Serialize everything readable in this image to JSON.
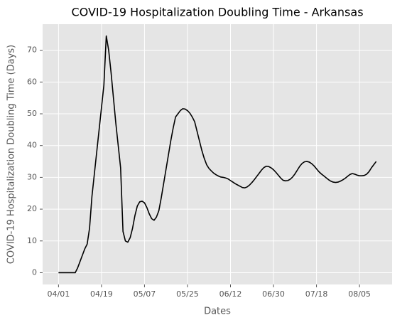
{
  "chart_data": {
    "type": "line",
    "title": "COVID-19 Hospitalization Doubling Time - Arkansas",
    "xlabel": "Dates",
    "ylabel": "COVID-19 Hospitalization Doubling Time (Days)",
    "categories": [
      "04/01",
      "04/02",
      "04/03",
      "04/04",
      "04/05",
      "04/06",
      "04/07",
      "04/08",
      "04/09",
      "04/10",
      "04/11",
      "04/12",
      "04/13",
      "04/14",
      "04/15",
      "04/16",
      "04/17",
      "04/18",
      "04/19",
      "04/20",
      "04/21",
      "04/22",
      "04/23",
      "04/24",
      "04/25",
      "04/26",
      "04/27",
      "04/28",
      "04/29",
      "04/30",
      "05/01",
      "05/02",
      "05/03",
      "05/04",
      "05/05",
      "05/06",
      "05/07",
      "05/08",
      "05/09",
      "05/10",
      "05/11",
      "05/12",
      "05/13",
      "05/14",
      "05/15",
      "05/16",
      "05/17",
      "05/18",
      "05/19",
      "05/20",
      "05/21",
      "05/22",
      "05/23",
      "05/24",
      "05/25",
      "05/26",
      "05/27",
      "05/28",
      "05/29",
      "05/30",
      "05/31",
      "06/01",
      "06/02",
      "06/03",
      "06/04",
      "06/05",
      "06/06",
      "06/07",
      "06/08",
      "06/09",
      "06/10",
      "06/11",
      "06/12",
      "06/13",
      "06/14",
      "06/15",
      "06/16",
      "06/17",
      "06/18",
      "06/19",
      "06/20",
      "06/21",
      "06/22",
      "06/23",
      "06/24",
      "06/25",
      "06/26",
      "06/27",
      "06/28",
      "06/29",
      "06/30",
      "07/01",
      "07/02",
      "07/03",
      "07/04",
      "07/05",
      "07/06",
      "07/07",
      "07/08",
      "07/09",
      "07/10",
      "07/11",
      "07/12",
      "07/13",
      "07/14",
      "07/15",
      "07/16",
      "07/17",
      "07/18",
      "07/19",
      "07/20",
      "07/21",
      "07/22",
      "07/23",
      "07/24",
      "07/25",
      "07/26",
      "07/27",
      "07/28",
      "07/29",
      "07/30",
      "07/31",
      "08/01",
      "08/02",
      "08/03",
      "08/04",
      "08/05",
      "08/06",
      "08/07",
      "08/08",
      "08/09",
      "08/10",
      "08/11",
      "08/12"
    ],
    "series": [
      {
        "name": "Doubling Time",
        "color": "#000000",
        "values": [
          0,
          0,
          0,
          0,
          0,
          0,
          0,
          0,
          1.5,
          3.5,
          5.5,
          7.5,
          9,
          14,
          24,
          31,
          38,
          45,
          52,
          59,
          74.5,
          70,
          63,
          55,
          47,
          40,
          33,
          13,
          10,
          9.6,
          11,
          14,
          18,
          21,
          22.3,
          22.5,
          22,
          20.5,
          18.5,
          17,
          16.5,
          17.5,
          19.5,
          23.5,
          28,
          32.5,
          37,
          41.5,
          45.5,
          49,
          50,
          51,
          51.6,
          51.5,
          51,
          50.2,
          49,
          47.5,
          44.5,
          41.5,
          38.5,
          36,
          34,
          32.8,
          32,
          31.3,
          30.8,
          30.4,
          30.1,
          30,
          29.8,
          29.5,
          29,
          28.5,
          28,
          27.6,
          27.2,
          26.8,
          26.7,
          27,
          27.6,
          28.4,
          29.3,
          30.3,
          31.3,
          32.3,
          33.1,
          33.5,
          33.4,
          33,
          32.4,
          31.6,
          30.7,
          29.8,
          29.1,
          28.9,
          29,
          29.4,
          30.1,
          31.1,
          32.3,
          33.5,
          34.4,
          34.9,
          35,
          34.8,
          34.3,
          33.6,
          32.7,
          31.8,
          31.1,
          30.5,
          29.9,
          29.3,
          28.8,
          28.5,
          28.4,
          28.5,
          28.8,
          29.2,
          29.7,
          30.3,
          30.9,
          31.2,
          31,
          30.7,
          30.5,
          30.5,
          30.6,
          31,
          31.8,
          33,
          34,
          35
        ]
      }
    ],
    "xticks": [
      "04/01",
      "04/19",
      "05/07",
      "05/25",
      "06/12",
      "06/30",
      "07/18",
      "08/05"
    ],
    "ylim": [
      -3.7,
      78.2
    ],
    "yticks": [
      0,
      10,
      20,
      30,
      40,
      50,
      60,
      70
    ],
    "grid": true
  }
}
